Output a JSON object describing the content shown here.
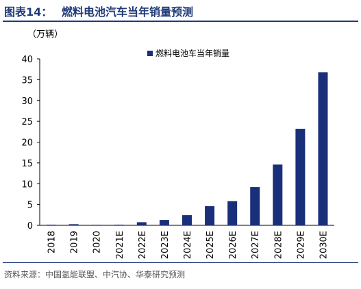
{
  "header": {
    "figure_label": "图表14：",
    "title": "燃料电池汽车当年销量预测"
  },
  "source": "资料来源：中国氢能联盟、中汽协、华泰研究预测",
  "colors": {
    "bar": "#1a2f7a",
    "title": "#1f3a78"
  },
  "chart_data": {
    "type": "bar",
    "unit_label": "（万辆）",
    "categories": [
      "2018",
      "2019",
      "2020",
      "2021E",
      "2022E",
      "2023E",
      "2024E",
      "2025E",
      "2026E",
      "2027E",
      "2028E",
      "2029E",
      "2030E"
    ],
    "series": [
      {
        "name": "燃料电池车当年销量",
        "values": [
          0.15,
          0.27,
          0.12,
          0.15,
          0.75,
          1.3,
          2.45,
          4.6,
          5.8,
          9.2,
          14.6,
          23.2,
          36.8
        ]
      }
    ],
    "ylim": [
      0,
      40
    ],
    "yticks": [
      0,
      5,
      10,
      15,
      20,
      25,
      30,
      35,
      40
    ],
    "grid": false,
    "legend_position": "top"
  }
}
